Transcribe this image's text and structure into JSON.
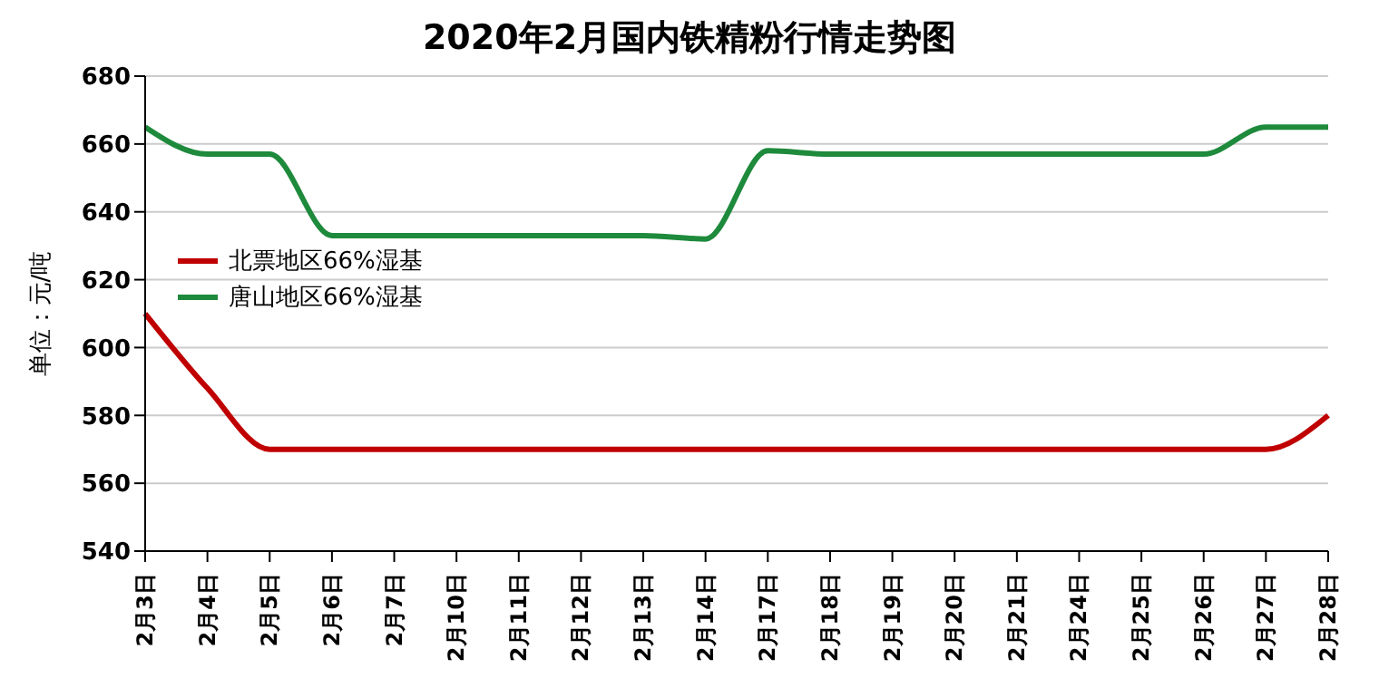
{
  "chart_data": {
    "type": "line",
    "title": "2020年2月国内铁精粉行情走势图",
    "ylabel": "单位：元/吨",
    "categories": [
      "2月3日",
      "2月4日",
      "2月5日",
      "2月6日",
      "2月7日",
      "2月10日",
      "2月11日",
      "2月12日",
      "2月13日",
      "2月14日",
      "2月17日",
      "2月18日",
      "2月19日",
      "2月20日",
      "2月21日",
      "2月24日",
      "2月25日",
      "2月26日",
      "2月27日",
      "2月28日"
    ],
    "series": [
      {
        "name": "北票地区66%湿基",
        "color": "#c00000",
        "values": [
          610,
          588,
          570,
          570,
          570,
          570,
          570,
          570,
          570,
          570,
          570,
          570,
          570,
          570,
          570,
          570,
          570,
          570,
          570,
          580
        ]
      },
      {
        "name": "唐山地区66%湿基",
        "color": "#1e8a3c",
        "values": [
          665,
          657,
          657,
          633,
          633,
          633,
          633,
          633,
          633,
          632,
          658,
          657,
          657,
          657,
          657,
          657,
          657,
          657,
          665,
          665
        ]
      }
    ],
    "ylim": [
      540,
      680
    ],
    "yticks": [
      540,
      560,
      580,
      600,
      620,
      640,
      660,
      680
    ],
    "grid": "y",
    "legend": "left",
    "marker": "none",
    "line_style": "solid"
  }
}
